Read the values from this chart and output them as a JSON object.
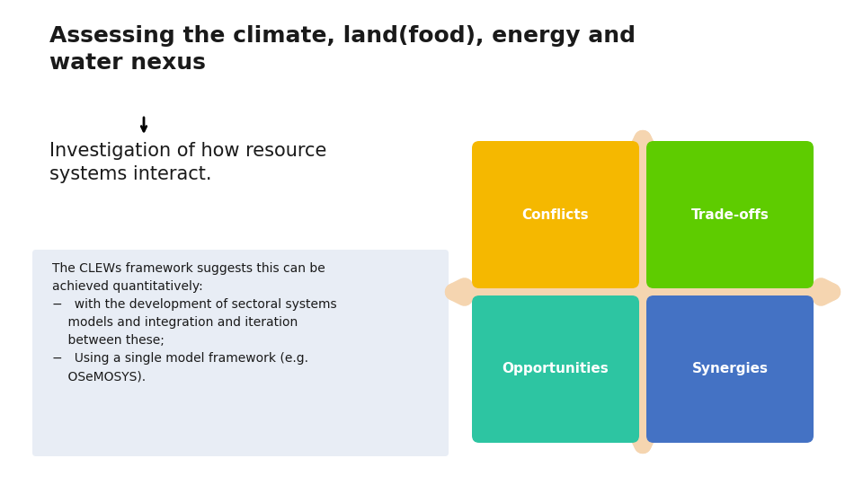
{
  "title": "Assessing the climate, land(food), energy and\nwater nexus",
  "subtitle": "Investigation of how resource\nsystems interact.",
  "body_text_lines": [
    "The CLEWs framework suggests this can be",
    "achieved quantitatively:",
    "−   with the development of sectoral systems",
    "    models and integration and iteration",
    "    between these;",
    "−   Using a single model framework (e.g.",
    "    OSeMOSYS)."
  ],
  "box_labels": [
    "Conflicts",
    "Trade-offs",
    "Opportunities",
    "Synergies"
  ],
  "box_colors": [
    "#F5B800",
    "#5ECC00",
    "#2DC5A2",
    "#4472C4"
  ],
  "arrow_color": "#F5D5B0",
  "background_color": "#FFFFFF",
  "text_panel_color": "#E8EDF5",
  "title_fontsize": 18,
  "subtitle_fontsize": 15,
  "body_fontsize": 10,
  "label_fontsize": 11
}
